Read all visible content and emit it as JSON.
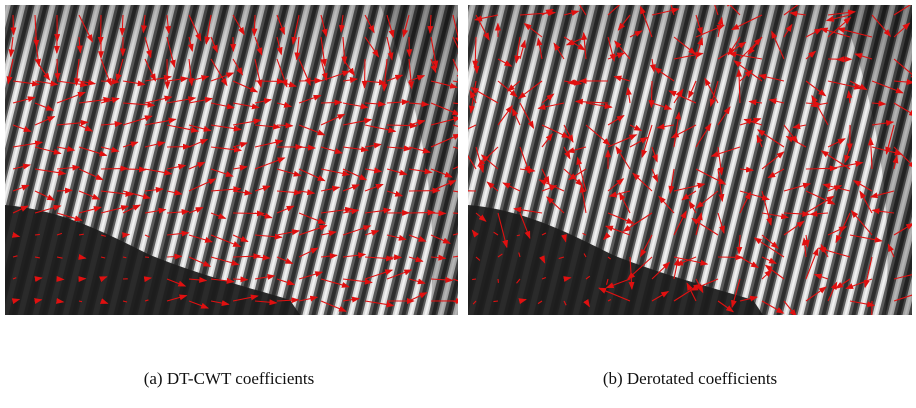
{
  "figure": {
    "panels": [
      {
        "caption": "(a) DT-CWT coefficients"
      },
      {
        "caption": "(b) Derotated coefficients"
      }
    ]
  }
}
